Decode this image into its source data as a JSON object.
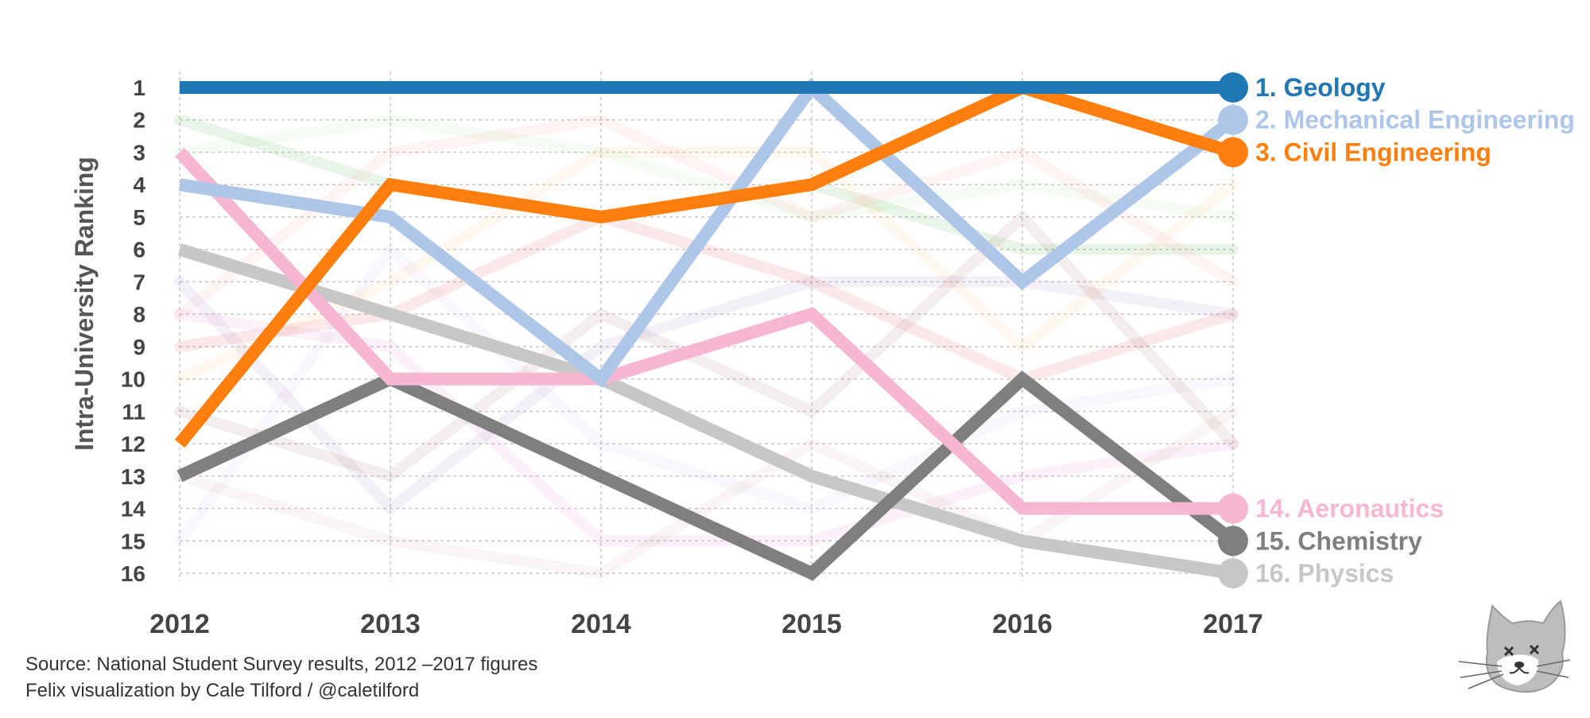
{
  "chart_data": {
    "type": "line",
    "ylabel": "Intra-University Ranking",
    "y_inverted": true,
    "ylim": [
      1,
      16
    ],
    "yticks": [
      "1",
      "2",
      "3",
      "4",
      "5",
      "6",
      "7",
      "8",
      "9",
      "10",
      "11",
      "12",
      "13",
      "14",
      "15",
      "16"
    ],
    "x": [
      "2012",
      "2013",
      "2014",
      "2015",
      "2016",
      "2017"
    ],
    "grid": "dashed",
    "highlighted_series": [
      {
        "name": "Geology",
        "label": "1. Geology",
        "color": "#1f77b4",
        "values": [
          1,
          1,
          1,
          1,
          1,
          1
        ]
      },
      {
        "name": "Mechanical Engineering",
        "label": "2. Mechanical Engineering",
        "color": "#aec7e8",
        "values": [
          4,
          5,
          10,
          1,
          7,
          2
        ]
      },
      {
        "name": "Civil Engineering",
        "label": "3. Civil Engineering",
        "color": "#ff7f0e",
        "values": [
          12,
          4,
          5,
          4,
          1,
          3
        ]
      },
      {
        "name": "Aeronautics",
        "label": "14. Aeronautics",
        "color": "#f7b6d2",
        "values": [
          3,
          10,
          10,
          8,
          14,
          14
        ]
      },
      {
        "name": "Chemistry",
        "label": "15. Chemistry",
        "color": "#7f7f7f",
        "values": [
          13,
          10,
          13,
          16,
          10,
          15
        ]
      },
      {
        "name": "Physics",
        "label": "16. Physics",
        "color": "#c7c7c7",
        "values": [
          6,
          8,
          10,
          13,
          15,
          16
        ]
      }
    ],
    "background_series": [
      {
        "color": "#2ca02c",
        "values": [
          2,
          4,
          5,
          4,
          6,
          6
        ]
      },
      {
        "color": "#98df8a",
        "values": [
          3,
          2,
          3,
          5,
          4,
          5
        ]
      },
      {
        "color": "#ff9896",
        "values": [
          8,
          3,
          2,
          5,
          3,
          7
        ]
      },
      {
        "color": "#d62728",
        "values": [
          9,
          8,
          5,
          7,
          10,
          8
        ]
      },
      {
        "color": "#9467bd",
        "values": [
          7,
          14,
          9,
          7,
          7,
          8
        ]
      },
      {
        "color": "#c5b0d5",
        "values": [
          15,
          6,
          12,
          14,
          11,
          10
        ]
      },
      {
        "color": "#8c564b",
        "values": [
          11,
          13,
          8,
          11,
          5,
          12
        ]
      },
      {
        "color": "#c49c94",
        "values": [
          13,
          15,
          16,
          12,
          15,
          11
        ]
      },
      {
        "color": "#e377c2",
        "values": [
          8,
          9,
          15,
          15,
          13,
          12
        ]
      },
      {
        "color": "#ffbb78",
        "values": [
          10,
          7,
          3,
          3,
          9,
          4
        ]
      }
    ]
  },
  "footer": {
    "source": "Source: National Student Survey results, 2012 –2017 figures",
    "author": "Felix visualization by Cale Tilford / @caletilford"
  },
  "logo": {
    "icon": "cat-logo-icon"
  }
}
